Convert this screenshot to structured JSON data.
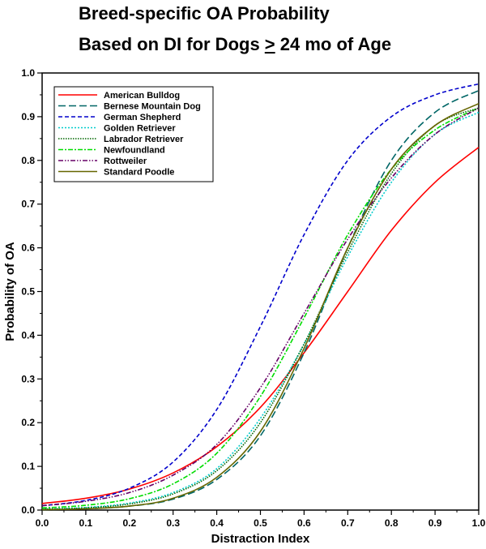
{
  "title": {
    "line1": "Breed-specific OA Probability",
    "line2_prefix": "Based on DI for Dogs ",
    "line2_symbol": ">",
    "line2_suffix": " 24 mo of Age"
  },
  "chart_data": {
    "type": "line",
    "xlabel": "Distraction Index",
    "ylabel": "Probability of OA",
    "xlim": [
      0,
      1
    ],
    "ylim": [
      0,
      1
    ],
    "xticks": [
      "0.0",
      "0.1",
      "0.2",
      "0.3",
      "0.4",
      "0.5",
      "0.6",
      "0.7",
      "0.8",
      "0.9",
      "1.0"
    ],
    "yticks": [
      "0.0",
      "0.1",
      "0.2",
      "0.3",
      "0.4",
      "0.5",
      "0.6",
      "0.7",
      "0.8",
      "0.9",
      "1.0"
    ],
    "grid": false,
    "legend_position": "top-left",
    "x": [
      0.0,
      0.1,
      0.2,
      0.3,
      0.4,
      0.5,
      0.6,
      0.7,
      0.8,
      0.9,
      1.0
    ],
    "series": [
      {
        "name": "American Bulldog",
        "color": "#ff0000",
        "dash": "solid",
        "values": [
          0.015,
          0.027,
          0.048,
          0.085,
          0.145,
          0.235,
          0.36,
          0.5,
          0.64,
          0.75,
          0.83
        ]
      },
      {
        "name": "Bernese Mountain Dog",
        "color": "#006666",
        "dash": "long-dash",
        "values": [
          0.001,
          0.003,
          0.009,
          0.025,
          0.07,
          0.17,
          0.36,
          0.6,
          0.8,
          0.91,
          0.96
        ]
      },
      {
        "name": "German Shepherd",
        "color": "#0000cc",
        "dash": "dash",
        "values": [
          0.01,
          0.022,
          0.05,
          0.11,
          0.23,
          0.42,
          0.63,
          0.8,
          0.9,
          0.95,
          0.975
        ]
      },
      {
        "name": "Golden Retriever",
        "color": "#00cccc",
        "dash": "dot",
        "values": [
          0.002,
          0.006,
          0.016,
          0.04,
          0.095,
          0.21,
          0.38,
          0.58,
          0.75,
          0.86,
          0.91
        ]
      },
      {
        "name": "Labrador Retriever",
        "color": "#006600",
        "dash": "dense-dot",
        "values": [
          0.002,
          0.005,
          0.014,
          0.037,
          0.09,
          0.2,
          0.38,
          0.59,
          0.77,
          0.88,
          0.92
        ]
      },
      {
        "name": "Newfoundland",
        "color": "#00dd00",
        "dash": "dash-dot",
        "values": [
          0.005,
          0.011,
          0.026,
          0.06,
          0.13,
          0.26,
          0.44,
          0.63,
          0.78,
          0.87,
          0.92
        ]
      },
      {
        "name": "Rottweiler",
        "color": "#660066",
        "dash": "dash-dot-dot",
        "values": [
          0.01,
          0.02,
          0.04,
          0.08,
          0.15,
          0.28,
          0.45,
          0.62,
          0.76,
          0.86,
          0.92
        ]
      },
      {
        "name": "Standard Poodle",
        "color": "#666600",
        "dash": "solid",
        "values": [
          0.001,
          0.003,
          0.009,
          0.027,
          0.075,
          0.18,
          0.37,
          0.6,
          0.78,
          0.88,
          0.93
        ]
      }
    ]
  }
}
